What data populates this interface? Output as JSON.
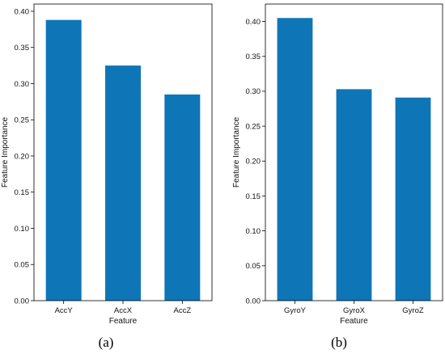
{
  "chart_data": [
    {
      "type": "bar",
      "caption": "(a)",
      "categories": [
        "AccY",
        "AccX",
        "AccZ"
      ],
      "values": [
        0.388,
        0.325,
        0.285
      ],
      "xlabel": "Feature",
      "ylabel": "Feature Importance",
      "ylim": [
        0,
        0.41
      ],
      "yticks": [
        "0.00",
        "0.05",
        "0.10",
        "0.15",
        "0.20",
        "0.25",
        "0.30",
        "0.35",
        "0.40"
      ],
      "color": "#0e76b7",
      "grid": false
    },
    {
      "type": "bar",
      "caption": "(b)",
      "categories": [
        "GyroY",
        "GyroX",
        "GyroZ"
      ],
      "values": [
        0.405,
        0.303,
        0.291
      ],
      "xlabel": "Feature",
      "ylabel": "Feature Importance",
      "ylim": [
        0,
        0.425
      ],
      "yticks": [
        "0.00",
        "0.05",
        "0.10",
        "0.15",
        "0.20",
        "0.25",
        "0.30",
        "0.35",
        "0.40"
      ],
      "color": "#0e76b7",
      "grid": false
    }
  ]
}
